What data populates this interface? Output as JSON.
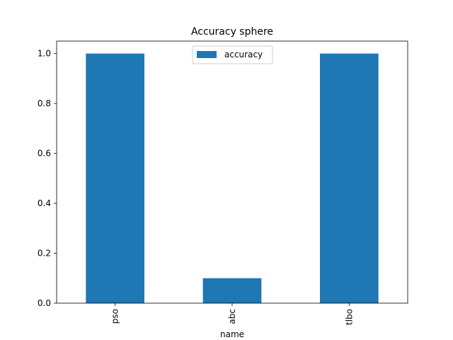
{
  "chart_data": {
    "type": "bar",
    "title": "Accuracy sphere",
    "xlabel": "name",
    "ylabel": "",
    "categories": [
      "pso",
      "abc",
      "tlbo"
    ],
    "series": [
      {
        "name": "accuracy",
        "values": [
          1.0,
          0.1,
          1.0
        ]
      }
    ],
    "ylim": [
      0,
      1.05
    ],
    "yticks": [
      "0.0",
      "0.2",
      "0.4",
      "0.6",
      "0.8",
      "1.0"
    ],
    "legend_position": "top-center",
    "grid": false,
    "colors": {
      "bar": "#1f77b4"
    }
  }
}
